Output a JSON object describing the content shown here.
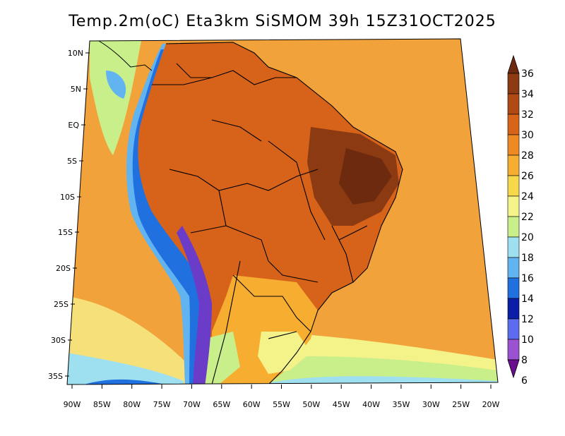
{
  "title": "Temp.2m(oC) Eta3km SiSMOM 39h 15Z31OCT2025",
  "lat_labels": [
    "10N",
    "5N",
    "EQ",
    "5S",
    "10S",
    "15S",
    "20S",
    "25S",
    "30S",
    "35S"
  ],
  "lon_labels": [
    "90W",
    "85W",
    "80W",
    "75W",
    "70W",
    "65W",
    "60W",
    "55W",
    "50W",
    "45W",
    "40W",
    "35W",
    "30W",
    "25W",
    "20W"
  ],
  "colorbar": {
    "labels": [
      "36",
      "34",
      "32",
      "30",
      "28",
      "26",
      "24",
      "22",
      "20",
      "18",
      "16",
      "14",
      "12",
      "10",
      "8",
      "6"
    ],
    "colors": [
      "#6e2a0e",
      "#8b3a12",
      "#b04a14",
      "#d8641a",
      "#ef8a22",
      "#f6ad30",
      "#f7d84a",
      "#f4f38a",
      "#c8ef8a",
      "#9fe0f0",
      "#62b4f0",
      "#2070e0",
      "#0a1ea8",
      "#5b6cf0",
      "#9a52d0",
      "#6a0f8e"
    ]
  },
  "map": {
    "ocean_main_color": "#f3a73e",
    "coast_cool_color": "#cde98a",
    "land_hot_color": "#c8551a",
    "andes_color": "#6a3cc8"
  }
}
